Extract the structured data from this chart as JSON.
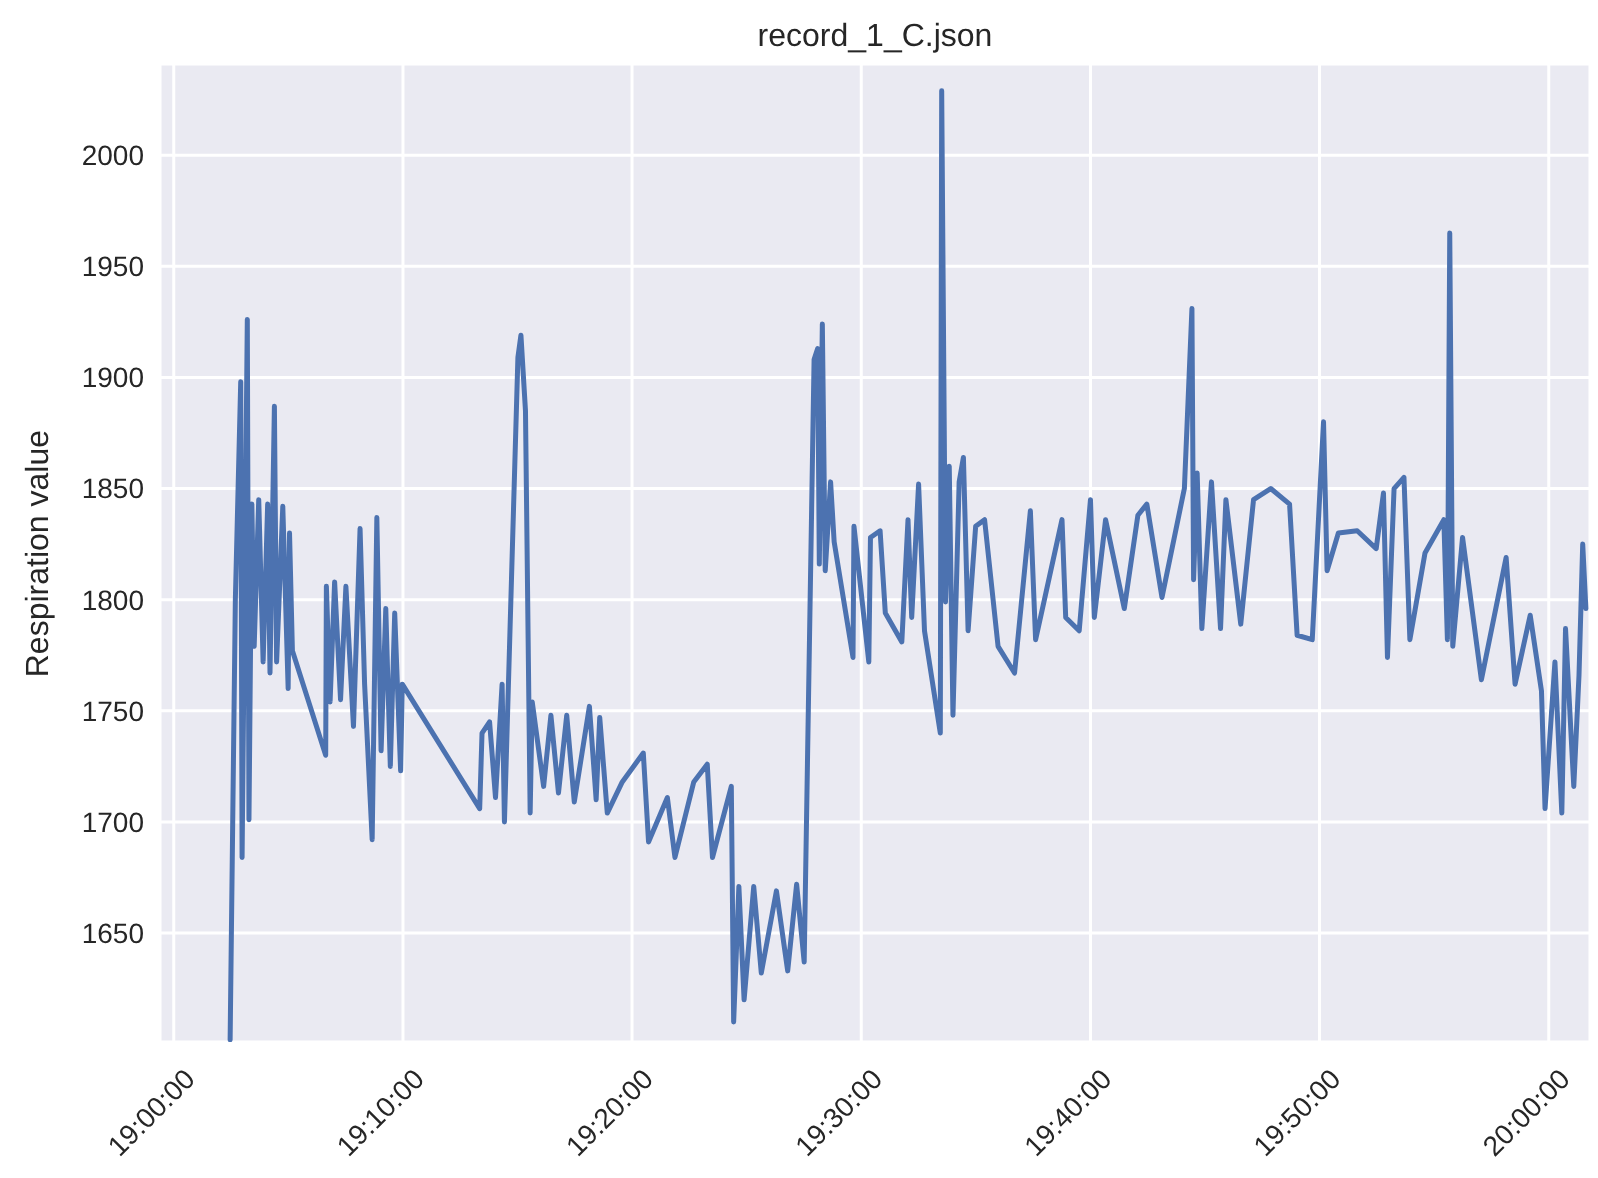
{
  "chart_data": {
    "type": "line",
    "title": "record_1_C.json",
    "ylabel": "Respiration value",
    "grid": true,
    "legend": false,
    "xlim": [
      18.99,
      20.03
    ],
    "xticks": [
      {
        "value": 19,
        "label": "19:00:00"
      },
      {
        "value": 19.1667,
        "label": "19:10:00"
      },
      {
        "value": 19.3333,
        "label": "19:20:00"
      },
      {
        "value": 19.5,
        "label": "19:30:00"
      },
      {
        "value": 19.6667,
        "label": "19:40:00"
      },
      {
        "value": 19.8333,
        "label": "19:50:00"
      },
      {
        "value": 20,
        "label": "20:00:00"
      }
    ],
    "ylim": [
      1601,
      2041
    ],
    "yticks": [
      1650,
      1700,
      1750,
      1800,
      1850,
      1900,
      1950,
      2000
    ],
    "series": [
      {
        "color": "#4c72b0",
        "x": [
          19.041,
          19.0448,
          19.0487,
          19.0497,
          19.0535,
          19.0547,
          19.0568,
          19.0585,
          19.0618,
          19.065,
          19.0683,
          19.07,
          19.0732,
          19.0748,
          19.0793,
          19.0832,
          19.0842,
          19.0863,
          19.1105,
          19.111,
          19.1137,
          19.117,
          19.1213,
          19.1252,
          19.1307,
          19.1355,
          19.1388,
          19.1443,
          19.1477,
          19.1508,
          19.1542,
          19.1575,
          19.1607,
          19.165,
          19.1662,
          19.2225,
          19.2242,
          19.2297,
          19.234,
          19.2388,
          19.2405,
          19.2503,
          19.2525,
          19.2558,
          19.2592,
          19.2607,
          19.269,
          19.2743,
          19.2798,
          19.2858,
          19.2913,
          19.3023,
          19.3072,
          19.3098,
          19.3153,
          19.3262,
          19.3415,
          19.3453,
          19.359,
          19.3645,
          19.3782,
          19.388,
          19.3918,
          19.4055,
          19.4072,
          19.411,
          19.4148,
          19.4218,
          19.4273,
          19.4383,
          19.4465,
          19.453,
          19.4585,
          19.4657,
          19.4683,
          19.4695,
          19.4717,
          19.4738,
          19.4777,
          19.4803,
          19.494,
          19.4947,
          19.5055,
          19.5067,
          19.5137,
          19.5175,
          19.5295,
          19.534,
          19.5367,
          19.5417,
          19.546,
          19.5575,
          19.5585,
          19.5613,
          19.564,
          19.5667,
          19.5712,
          19.5743,
          19.5777,
          19.5832,
          19.5897,
          19.5995,
          19.6115,
          19.623,
          19.6268,
          19.646,
          19.6487,
          19.6585,
          19.6667,
          19.6695,
          19.6777,
          19.6913,
          19.7012,
          19.7077,
          19.7187,
          19.735,
          19.7405,
          19.7417,
          19.7443,
          19.7477,
          19.7547,
          19.7613,
          19.7652,
          19.776,
          19.7853,
          19.7978,
          19.8115,
          19.817,
          19.828,
          19.8362,
          19.8388,
          19.847,
          19.8607,
          19.8745,
          19.8798,
          19.8827,
          19.8875,
          19.8947,
          19.899,
          19.91,
          19.9237,
          19.9263,
          19.928,
          19.9302,
          19.9373,
          19.951,
          19.969,
          19.9755,
          19.9865,
          19.9947,
          19.9973,
          20.0045,
          20.0095,
          20.0122,
          20.0182,
          20.022,
          20.0247,
          20.027
        ],
        "values": [
          1602,
          1800,
          1898,
          1684,
          1926,
          1701,
          1843,
          1779,
          1845,
          1772,
          1843,
          1767,
          1887,
          1772,
          1842,
          1760,
          1830,
          1777,
          1730,
          1806,
          1754,
          1808,
          1755,
          1806,
          1743,
          1832,
          1762,
          1692,
          1837,
          1732,
          1796,
          1725,
          1794,
          1723,
          1762,
          1706,
          1740,
          1745,
          1711,
          1762,
          1700,
          1909,
          1919,
          1885,
          1704,
          1754,
          1716,
          1748,
          1713,
          1748,
          1709,
          1752,
          1710,
          1747,
          1704,
          1718,
          1731,
          1691,
          1711,
          1684,
          1718,
          1726,
          1684,
          1716,
          1610,
          1671,
          1620,
          1671,
          1632,
          1669,
          1633,
          1672,
          1637,
          1908,
          1913,
          1816,
          1924,
          1813,
          1853,
          1826,
          1774,
          1833,
          1772,
          1828,
          1831,
          1794,
          1781,
          1836,
          1792,
          1852,
          1786,
          1740,
          2029,
          1799,
          1860,
          1748,
          1853,
          1864,
          1786,
          1833,
          1836,
          1779,
          1767,
          1840,
          1782,
          1836,
          1792,
          1786,
          1845,
          1792,
          1836,
          1796,
          1838,
          1843,
          1801,
          1850,
          1931,
          1809,
          1857,
          1787,
          1853,
          1787,
          1845,
          1789,
          1845,
          1850,
          1843,
          1784,
          1782,
          1880,
          1813,
          1830,
          1831,
          1823,
          1848,
          1774,
          1850,
          1855,
          1782,
          1821,
          1836,
          1782,
          1965,
          1779,
          1828,
          1764,
          1819,
          1762,
          1793,
          1759,
          1706,
          1772,
          1704,
          1787,
          1716,
          1766,
          1825,
          1796
        ]
      }
    ]
  }
}
